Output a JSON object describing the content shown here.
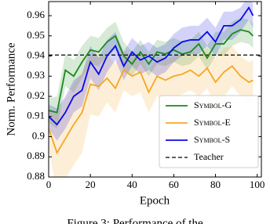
{
  "chart_data": {
    "type": "line",
    "ylabel": "Norm. Performance",
    "xlabel": "Epoch",
    "caption": "Figure 3: Performance of the",
    "x": [
      0,
      4,
      8,
      12,
      16,
      20,
      24,
      28,
      32,
      36,
      40,
      44,
      48,
      52,
      56,
      60,
      64,
      68,
      72,
      76,
      80,
      84,
      88,
      92,
      96,
      98
    ],
    "series": [
      {
        "name": "Symbol-G",
        "color": "#1a8a1a",
        "values": [
          0.913,
          0.912,
          0.933,
          0.93,
          0.937,
          0.943,
          0.942,
          0.947,
          0.95,
          0.94,
          0.936,
          0.942,
          0.936,
          0.942,
          0.941,
          0.943,
          0.941,
          0.942,
          0.946,
          0.939,
          0.946,
          0.946,
          0.951,
          0.953,
          0.952,
          0.95
        ],
        "spread": [
          0.006,
          0.008,
          0.008,
          0.008,
          0.008,
          0.007,
          0.007,
          0.007,
          0.007,
          0.007,
          0.006,
          0.006,
          0.006,
          0.006,
          0.006,
          0.006,
          0.006,
          0.006,
          0.006,
          0.006,
          0.006,
          0.006,
          0.006,
          0.006,
          0.006,
          0.006
        ]
      },
      {
        "name": "Symbol-E",
        "color": "#f5a623",
        "values": [
          0.904,
          0.892,
          0.899,
          0.906,
          0.912,
          0.926,
          0.925,
          0.929,
          0.924,
          0.933,
          0.93,
          0.932,
          0.922,
          0.93,
          0.928,
          0.93,
          0.931,
          0.933,
          0.93,
          0.934,
          0.927,
          0.932,
          0.935,
          0.93,
          0.927,
          0.928
        ],
        "spread": [
          0.01,
          0.02,
          0.02,
          0.02,
          0.02,
          0.015,
          0.015,
          0.012,
          0.012,
          0.01,
          0.01,
          0.01,
          0.01,
          0.01,
          0.01,
          0.01,
          0.01,
          0.01,
          0.01,
          0.01,
          0.012,
          0.012,
          0.01,
          0.01,
          0.01,
          0.01
        ]
      },
      {
        "name": "Symbol-S",
        "color": "#0a0ae6",
        "values": [
          0.91,
          0.906,
          0.912,
          0.92,
          0.923,
          0.937,
          0.931,
          0.94,
          0.945,
          0.935,
          0.942,
          0.938,
          0.94,
          0.937,
          0.939,
          0.944,
          0.947,
          0.948,
          0.948,
          0.952,
          0.947,
          0.955,
          0.955,
          0.958,
          0.964,
          0.96
        ],
        "spread": [
          0.006,
          0.008,
          0.008,
          0.008,
          0.008,
          0.008,
          0.008,
          0.008,
          0.007,
          0.007,
          0.007,
          0.007,
          0.007,
          0.007,
          0.007,
          0.007,
          0.007,
          0.007,
          0.007,
          0.007,
          0.007,
          0.007,
          0.007,
          0.006,
          0.006,
          0.006
        ]
      }
    ],
    "reference": {
      "name": "Teacher",
      "value": 0.9405,
      "color": "#000000"
    },
    "xlim": [
      0,
      102
    ],
    "ylim": [
      0.88,
      0.967
    ],
    "xticks": [
      0,
      20,
      40,
      60,
      80,
      100
    ],
    "yticks": [
      0.88,
      0.89,
      0.9,
      0.91,
      0.92,
      0.93,
      0.94,
      0.95,
      0.96
    ],
    "legend": "lower right"
  }
}
